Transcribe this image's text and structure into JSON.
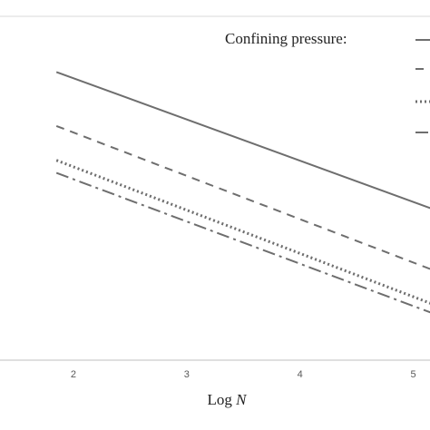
{
  "chart_data": {
    "type": "line",
    "xlabel_prefix": "Log ",
    "xlabel_var": "N",
    "ylabel": "",
    "xlim": [
      1.2,
      5.3
    ],
    "ylim": [
      0,
      1
    ],
    "x_ticks": [
      "2",
      "3",
      "4",
      "5"
    ],
    "grid": false,
    "legend": {
      "title": "Confining pressure:",
      "placement": "top-right"
    },
    "colors": {
      "solid": "#6e6e6e",
      "dashed": "#6e6e6e",
      "dotted": "#6e6e6e",
      "dashdot": "#6e6e6e",
      "axis": "#bfbfbf",
      "frame": "#d9d9d9"
    },
    "series": [
      {
        "style": "solid",
        "x": [
          1.85,
          5.3
        ],
        "y": [
          0.8,
          0.405
        ]
      },
      {
        "style": "dashed",
        "x": [
          1.85,
          5.3
        ],
        "y": [
          0.65,
          0.235
        ]
      },
      {
        "style": "dotted",
        "x": [
          1.85,
          5.3
        ],
        "y": [
          0.555,
          0.14
        ]
      },
      {
        "style": "dashdot",
        "x": [
          1.85,
          5.3
        ],
        "y": [
          0.52,
          0.115
        ]
      }
    ]
  }
}
